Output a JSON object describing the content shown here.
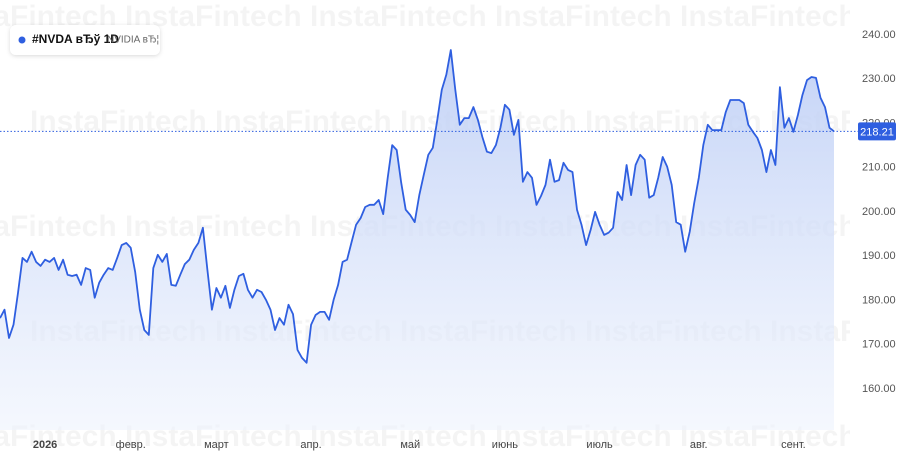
{
  "chart_data": {
    "type": "area",
    "title": "#NVDA вЂў 1D",
    "subtitle": "NVIDIA вЂ¦",
    "watermark": "InstaFintech",
    "last_price": 218.21,
    "color": "#2f5fe0",
    "grid": false,
    "categories": [
      null,
      null,
      null,
      null,
      null,
      null,
      null,
      null,
      null,
      null,
      "2026",
      null,
      null,
      null,
      null,
      null,
      null,
      null,
      null,
      null,
      null,
      null,
      null,
      null,
      null,
      null,
      null,
      null,
      null,
      "февр.",
      null,
      null,
      null,
      null,
      null,
      null,
      null,
      null,
      null,
      null,
      null,
      null,
      null,
      null,
      null,
      null,
      null,
      null,
      "март",
      null,
      null,
      null,
      null,
      null,
      null,
      null,
      null,
      null,
      null,
      null,
      null,
      null,
      null,
      null,
      null,
      null,
      null,
      null,
      null,
      "апр.",
      null,
      null,
      null,
      null,
      null,
      null,
      null,
      null,
      null,
      null,
      null,
      null,
      null,
      null,
      null,
      null,
      null,
      null,
      null,
      null,
      null,
      "май",
      null,
      null,
      null,
      null,
      null,
      null,
      null,
      null,
      null,
      null,
      null,
      null,
      null,
      null,
      null,
      null,
      null,
      null,
      null,
      null,
      "июнь",
      null,
      null,
      null,
      null,
      null,
      null,
      null,
      null,
      null,
      null,
      null,
      null,
      null,
      null,
      null,
      null,
      null,
      null,
      null,
      null,
      "июль",
      null,
      null,
      null,
      null,
      null,
      null,
      null,
      null,
      null,
      null,
      null,
      null,
      null,
      null,
      null,
      null,
      null,
      null,
      null,
      null,
      null,
      "авг.",
      null,
      null,
      null,
      null,
      null,
      null,
      null,
      null,
      null,
      null,
      null,
      null,
      null,
      null,
      null,
      null,
      null,
      null,
      null,
      null,
      "сент.",
      null,
      null,
      null,
      null,
      null,
      null,
      null,
      null,
      null
    ],
    "values": [
      176.0,
      177.9,
      171.5,
      174.5,
      181.7,
      189.6,
      188.7,
      191.0,
      188.7,
      187.8,
      189.2,
      188.7,
      189.6,
      186.9,
      189.2,
      185.8,
      185.5,
      185.8,
      183.5,
      187.3,
      186.9,
      180.6,
      184.0,
      185.8,
      187.3,
      186.9,
      189.6,
      192.5,
      193.0,
      191.9,
      186.4,
      177.9,
      173.3,
      172.2,
      187.3,
      190.3,
      188.7,
      190.5,
      183.5,
      183.3,
      185.8,
      188.2,
      189.2,
      191.4,
      193.0,
      196.4,
      186.9,
      177.9,
      182.8,
      180.6,
      183.3,
      178.3,
      182.4,
      185.5,
      186.0,
      182.4,
      180.6,
      182.4,
      181.9,
      180.1,
      177.9,
      173.3,
      176.0,
      174.5,
      179.0,
      176.9,
      168.8,
      167.0,
      165.9,
      174.5,
      176.7,
      177.4,
      177.4,
      175.6,
      180.1,
      183.5,
      188.7,
      189.2,
      193.2,
      197.1,
      198.6,
      201.1,
      201.6,
      201.6,
      202.7,
      199.5,
      207.7,
      215.1,
      214.0,
      206.6,
      200.5,
      199.3,
      197.7,
      203.8,
      208.4,
      212.9,
      214.5,
      220.8,
      227.6,
      231.0,
      236.6,
      227.6,
      219.7,
      221.2,
      221.2,
      223.7,
      220.8,
      216.9,
      213.6,
      213.3,
      215.1,
      219.0,
      224.2,
      223.1,
      217.4,
      220.8,
      206.8,
      209.0,
      207.7,
      201.6,
      203.6,
      206.1,
      211.8,
      206.8,
      207.2,
      211.1,
      209.5,
      209.0,
      200.5,
      197.1,
      192.5,
      195.9,
      200.0,
      197.1,
      194.8,
      195.3,
      196.4,
      204.5,
      202.7,
      210.6,
      203.8,
      210.6,
      212.9,
      211.8,
      203.2,
      203.8,
      207.7,
      212.4,
      210.2,
      206.1,
      197.7,
      197.1,
      191.0,
      195.5,
      202.0,
      207.7,
      215.1,
      219.7,
      218.5,
      218.5,
      218.5,
      222.6,
      225.3,
      225.3,
      225.3,
      224.6,
      219.7,
      218.1,
      216.7,
      214.0,
      209.0,
      214.0,
      210.6,
      228.2,
      219.0,
      221.2,
      218.1,
      221.9,
      226.4,
      229.8,
      230.5,
      230.3,
      225.8,
      223.7,
      219.0,
      218.21
    ],
    "ylim": [
      150.7,
      247.9
    ],
    "yticks": [
      {
        "value": 160,
        "label": "160.00"
      },
      {
        "value": 170,
        "label": "170.00"
      },
      {
        "value": 180,
        "label": "180.00"
      },
      {
        "value": 190,
        "label": "190.00"
      },
      {
        "value": 200,
        "label": "200.00"
      },
      {
        "value": 210,
        "label": "210.00"
      },
      {
        "value": 220,
        "label": "220.00"
      },
      {
        "value": 230,
        "label": "230.00"
      },
      {
        "value": 240,
        "label": "240.00"
      }
    ]
  }
}
